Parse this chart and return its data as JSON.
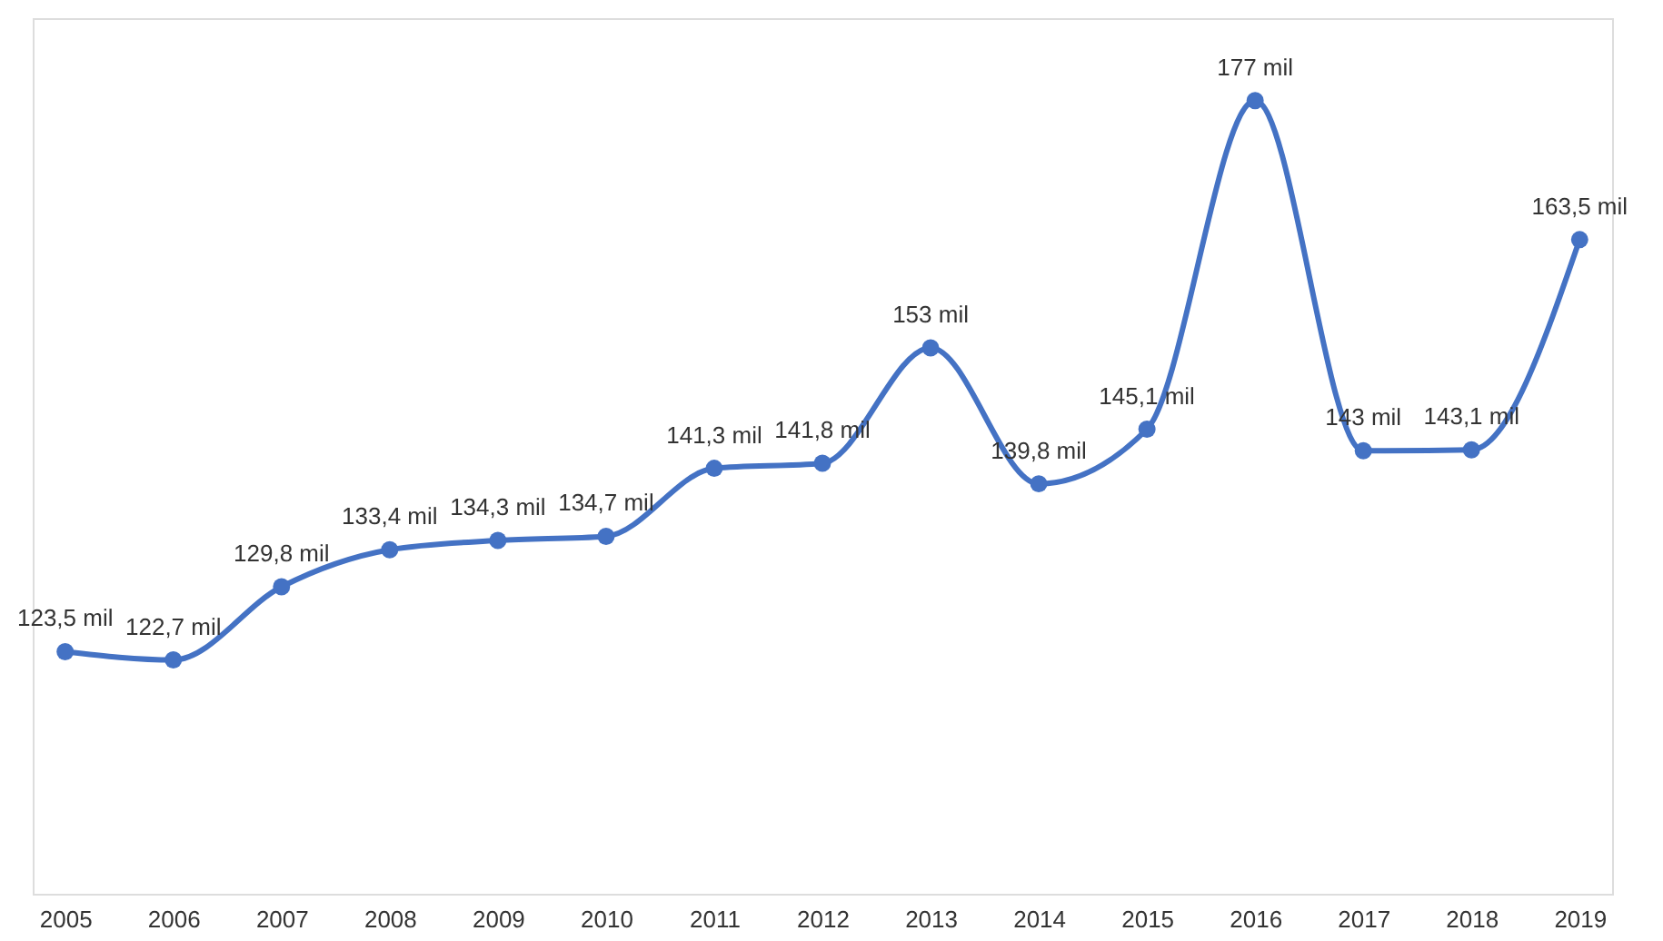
{
  "chart_data": {
    "type": "line",
    "categories": [
      "2005",
      "2006",
      "2007",
      "2008",
      "2009",
      "2010",
      "2011",
      "2012",
      "2013",
      "2014",
      "2015",
      "2016",
      "2017",
      "2018",
      "2019"
    ],
    "series": [
      {
        "color": "#4472c4",
        "values": [
          123.5,
          122.7,
          129.8,
          133.4,
          134.3,
          134.7,
          141.3,
          141.8,
          153,
          139.8,
          145.1,
          177,
          143,
          143.1,
          163.5
        ],
        "value_labels": [
          "123,5 mil",
          "122,7 mil",
          "129,8 mil",
          "133,4 mil",
          "134,3 mil",
          "134,7 mil",
          "141,3 mil",
          "141,8 mil",
          "153 mil",
          "139,8 mil",
          "145,1 mil",
          "177 mil",
          "143 mil",
          "143,1 mil",
          "163,5 mil"
        ]
      }
    ],
    "ylim": [
      100,
      185
    ],
    "tick_labels": "x",
    "grid": false,
    "marker": "circle",
    "line_style": "solid"
  }
}
